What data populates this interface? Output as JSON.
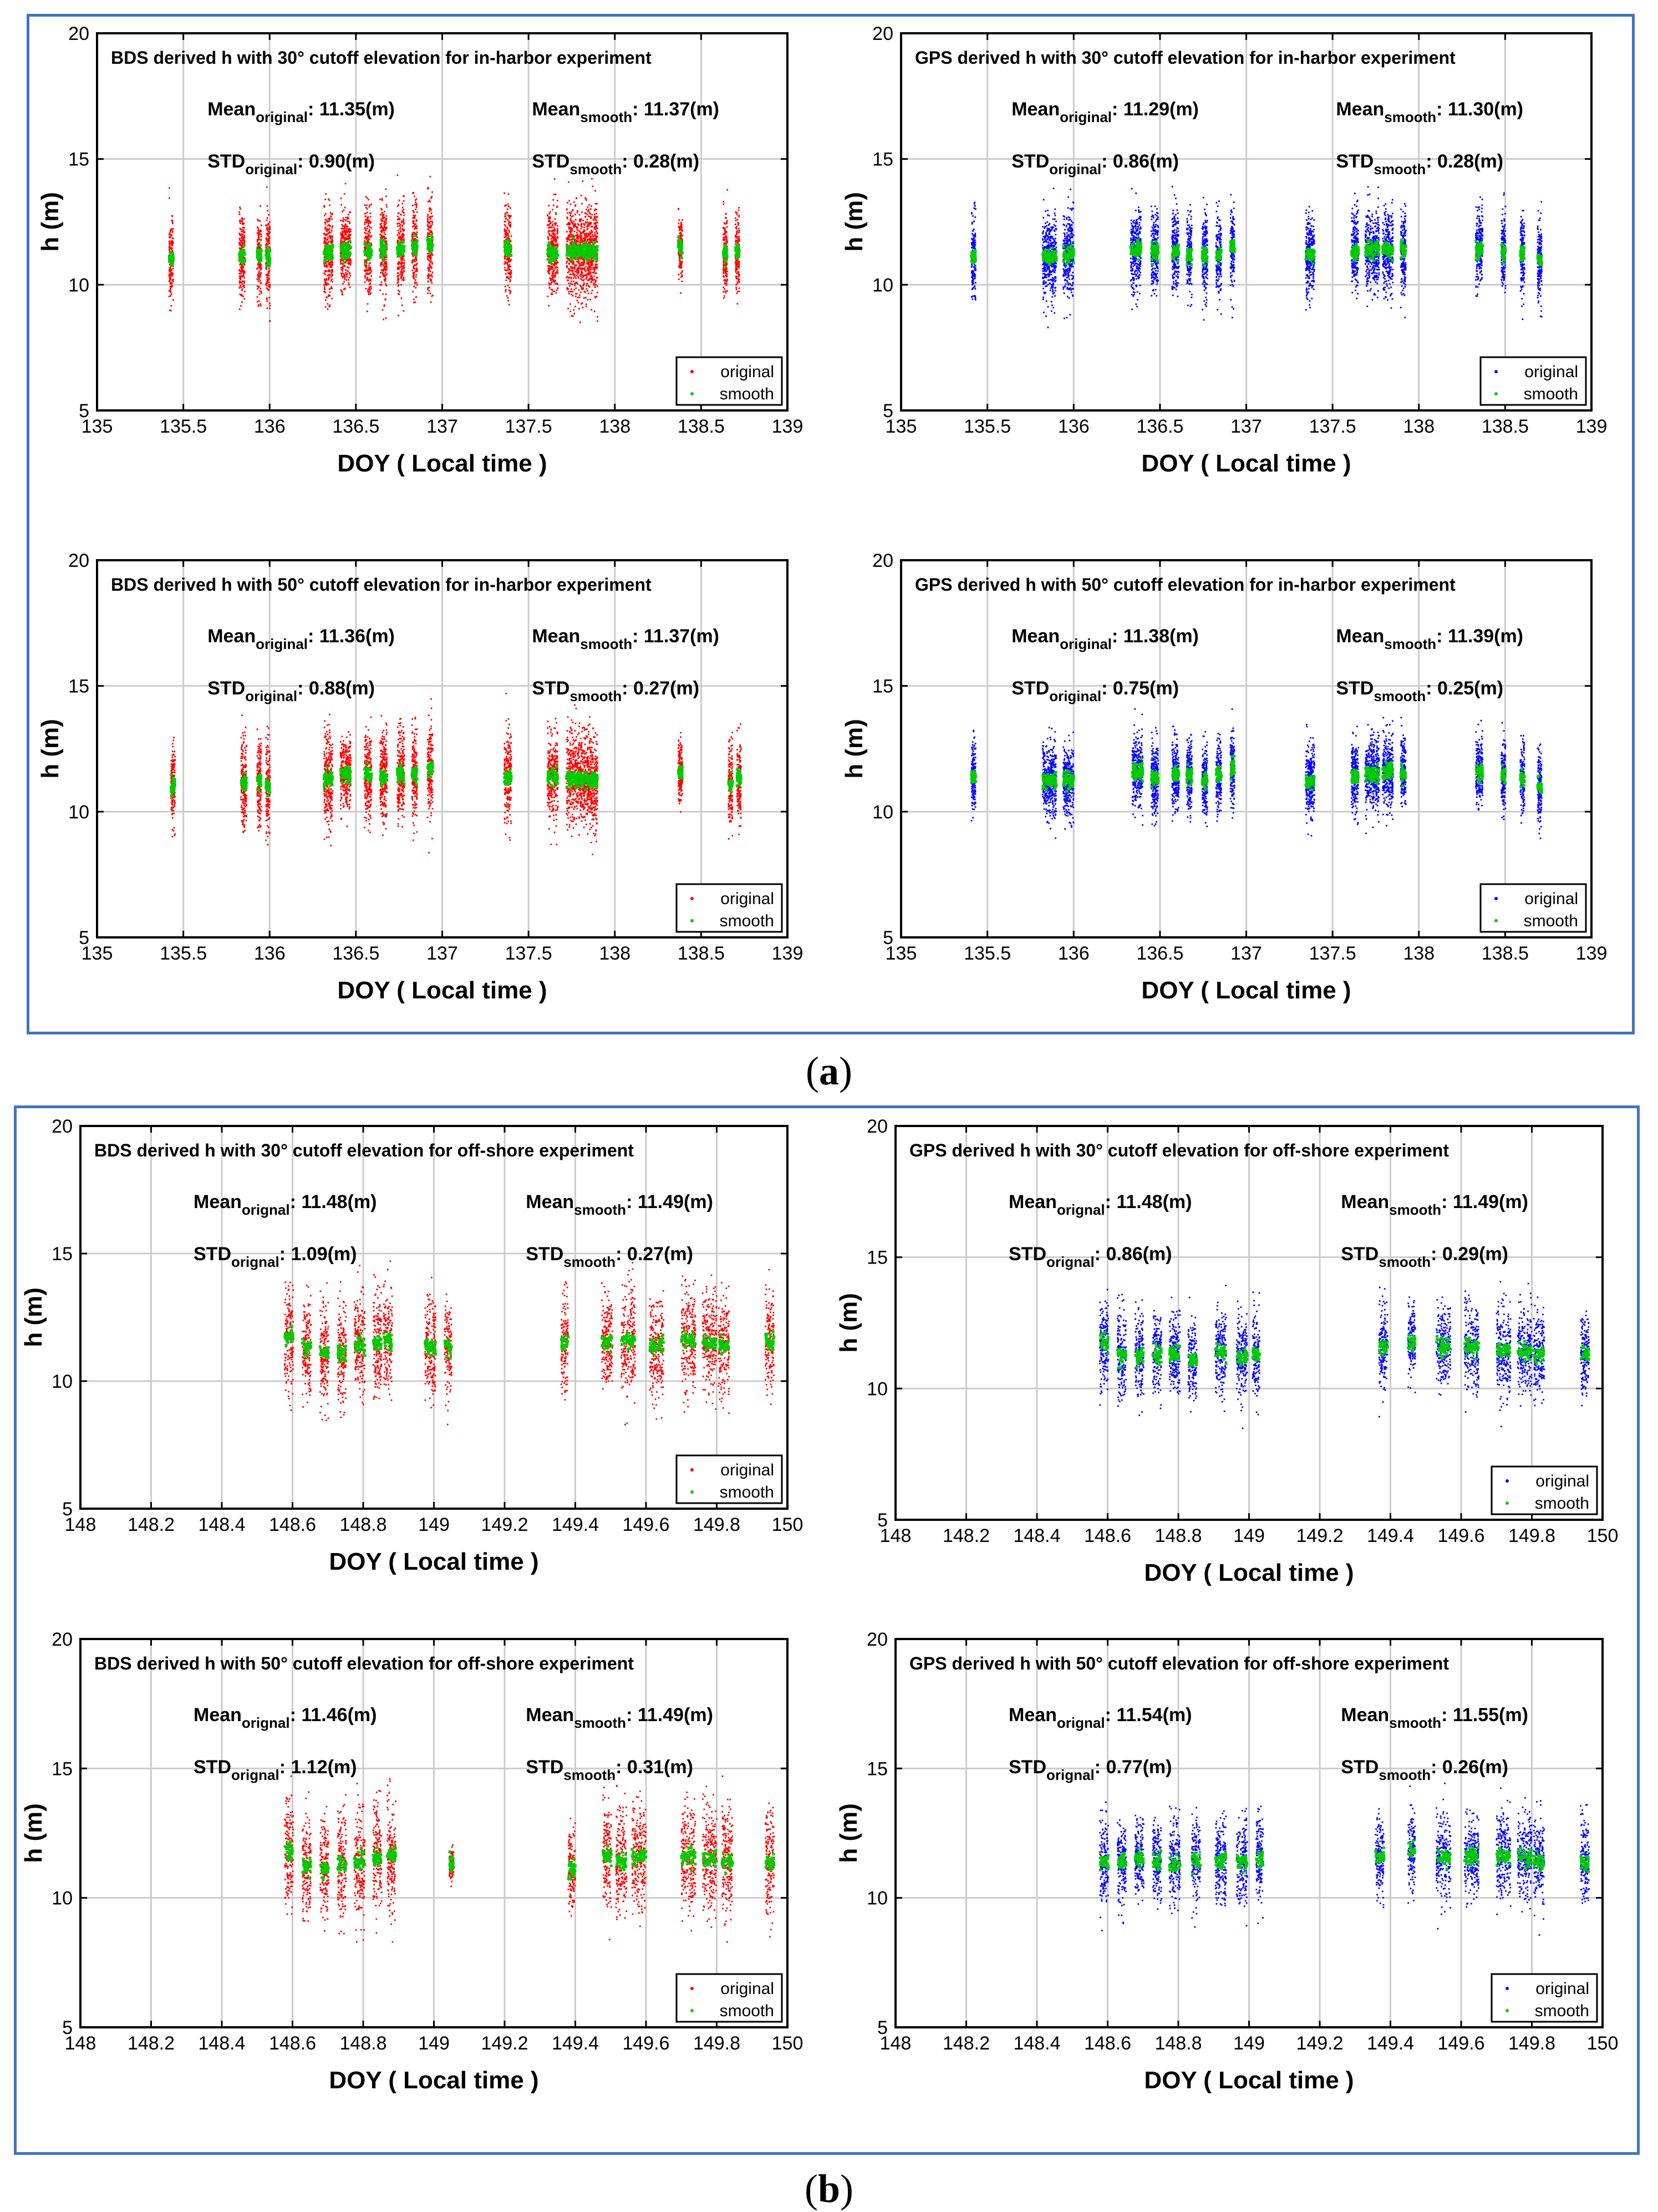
{
  "captions": {
    "a": "a",
    "b": "b"
  },
  "colors": {
    "original_bds": "#ff0000",
    "original_gps": "#0000ff",
    "smooth": "#00cc00",
    "frame": "#4472c4",
    "grid": "#cccccc"
  },
  "chart_data": [
    {
      "id": "bds30_harbor",
      "type": "scatter",
      "title": "BDS derived h with 30° cutoff elevation for in-harbor experiment",
      "xlabel": "DOY ( Local time )",
      "ylabel": "h (m)",
      "xlim": [
        135,
        139
      ],
      "ylim": [
        5,
        20
      ],
      "xticks": [
        "135",
        "135.5",
        "136",
        "136.5",
        "137",
        "137.5",
        "138",
        "138.5",
        "139"
      ],
      "yticks": [
        "5",
        "10",
        "15",
        "20"
      ],
      "mean_original": "11.35(m)",
      "mean_smooth": "11.37(m)",
      "std_original": "0.90(m)",
      "std_smooth": "0.28(m)",
      "original_sub": "original",
      "legend": [
        "original",
        "smooth"
      ],
      "orig_color": "#ff0000",
      "seed": 11,
      "clusters": [
        [
          135.43,
          0.012,
          11.0,
          0.8
        ],
        [
          135.84,
          0.016,
          11.1,
          0.9
        ],
        [
          135.94,
          0.012,
          11.2,
          0.9
        ],
        [
          135.99,
          0.012,
          11.1,
          0.9
        ],
        [
          136.34,
          0.025,
          11.3,
          0.9
        ],
        [
          136.44,
          0.03,
          11.4,
          0.7
        ],
        [
          136.57,
          0.02,
          11.3,
          0.9
        ],
        [
          136.66,
          0.02,
          11.4,
          0.9
        ],
        [
          136.76,
          0.02,
          11.4,
          0.9
        ],
        [
          136.84,
          0.015,
          11.5,
          0.9
        ],
        [
          136.93,
          0.015,
          11.6,
          0.9
        ],
        [
          137.38,
          0.02,
          11.4,
          0.9
        ],
        [
          137.64,
          0.03,
          11.3,
          0.8
        ],
        [
          137.78,
          0.06,
          11.3,
          0.9
        ],
        [
          137.87,
          0.03,
          11.3,
          0.9
        ],
        [
          138.38,
          0.012,
          11.5,
          0.6
        ],
        [
          138.64,
          0.012,
          11.2,
          0.8
        ],
        [
          138.71,
          0.012,
          11.3,
          0.8
        ]
      ]
    },
    {
      "id": "gps30_harbor",
      "type": "scatter",
      "title": "GPS derived h with 30° cutoff elevation for in-harbor experiment",
      "xlabel": "DOY ( Local time )",
      "ylabel": "h (m)",
      "xlim": [
        135,
        139
      ],
      "ylim": [
        5,
        20
      ],
      "xticks": [
        "135",
        "135.5",
        "136",
        "136.5",
        "137",
        "137.5",
        "138",
        "138.5",
        "139"
      ],
      "yticks": [
        "5",
        "10",
        "15",
        "20"
      ],
      "mean_original": "11.29(m)",
      "mean_smooth": "11.30(m)",
      "std_original": "0.86(m)",
      "std_smooth": "0.28(m)",
      "original_sub": "original",
      "legend": [
        "original",
        "smooth"
      ],
      "orig_color": "#0000ff",
      "seed": 23,
      "clusters": [
        [
          135.42,
          0.012,
          11.2,
          0.8
        ],
        [
          135.86,
          0.04,
          11.1,
          0.8
        ],
        [
          135.97,
          0.03,
          11.2,
          0.8
        ],
        [
          136.36,
          0.03,
          11.4,
          0.8
        ],
        [
          136.47,
          0.02,
          11.3,
          0.8
        ],
        [
          136.59,
          0.02,
          11.3,
          0.8
        ],
        [
          136.67,
          0.015,
          11.2,
          0.8
        ],
        [
          136.76,
          0.015,
          11.2,
          0.8
        ],
        [
          136.84,
          0.015,
          11.2,
          0.8
        ],
        [
          136.92,
          0.012,
          11.5,
          0.8
        ],
        [
          137.37,
          0.025,
          11.2,
          0.8
        ],
        [
          137.63,
          0.02,
          11.3,
          0.8
        ],
        [
          137.73,
          0.04,
          11.4,
          0.8
        ],
        [
          137.82,
          0.03,
          11.4,
          0.8
        ],
        [
          137.91,
          0.015,
          11.4,
          0.8
        ],
        [
          138.35,
          0.02,
          11.4,
          0.8
        ],
        [
          138.49,
          0.012,
          11.3,
          0.8
        ],
        [
          138.6,
          0.012,
          11.2,
          0.8
        ],
        [
          138.7,
          0.012,
          11.0,
          0.8
        ]
      ]
    },
    {
      "id": "bds50_harbor",
      "type": "scatter",
      "title": "BDS derived h with 50° cutoff elevation for in-harbor experiment",
      "xlabel": "DOY ( Local time )",
      "ylabel": "h (m)",
      "xlim": [
        135,
        139
      ],
      "ylim": [
        5,
        20
      ],
      "xticks": [
        "135",
        "135.5",
        "136",
        "136.5",
        "137",
        "137.5",
        "138",
        "138.5",
        "139"
      ],
      "yticks": [
        "5",
        "10",
        "15",
        "20"
      ],
      "mean_original": "11.36(m)",
      "mean_smooth": "11.37(m)",
      "std_original": "0.88(m)",
      "std_smooth": "0.27(m)",
      "original_sub": "original",
      "legend": [
        "original",
        "smooth"
      ],
      "orig_color": "#ff0000",
      "seed": 37,
      "clusters": [
        [
          135.44,
          0.012,
          11.0,
          0.8
        ],
        [
          135.85,
          0.016,
          11.1,
          0.9
        ],
        [
          135.94,
          0.012,
          11.2,
          0.9
        ],
        [
          135.99,
          0.012,
          11.0,
          0.9
        ],
        [
          136.34,
          0.025,
          11.3,
          0.9
        ],
        [
          136.44,
          0.03,
          11.5,
          0.7
        ],
        [
          136.57,
          0.02,
          11.4,
          0.9
        ],
        [
          136.66,
          0.02,
          11.4,
          0.9
        ],
        [
          136.76,
          0.02,
          11.5,
          0.9
        ],
        [
          136.84,
          0.015,
          11.5,
          0.9
        ],
        [
          136.93,
          0.015,
          11.7,
          0.9
        ],
        [
          137.38,
          0.02,
          11.3,
          0.9
        ],
        [
          137.64,
          0.03,
          11.4,
          0.8
        ],
        [
          137.78,
          0.06,
          11.3,
          0.9
        ],
        [
          137.87,
          0.03,
          11.3,
          0.9
        ],
        [
          138.38,
          0.012,
          11.6,
          0.6
        ],
        [
          138.67,
          0.012,
          11.1,
          0.8
        ],
        [
          138.72,
          0.012,
          11.3,
          0.8
        ]
      ]
    },
    {
      "id": "gps50_harbor",
      "type": "scatter",
      "title": "GPS derived h with 50° cutoff elevation for in-harbor experiment",
      "xlabel": "DOY ( Local time )",
      "ylabel": "h (m)",
      "xlim": [
        135,
        139
      ],
      "ylim": [
        5,
        20
      ],
      "xticks": [
        "135",
        "135.5",
        "136",
        "136.5",
        "137",
        "137.5",
        "138",
        "138.5",
        "139"
      ],
      "yticks": [
        "5",
        "10",
        "15",
        "20"
      ],
      "mean_original": "11.38(m)",
      "mean_smooth": "11.39(m)",
      "std_original": "0.75(m)",
      "std_smooth": "0.25(m)",
      "original_sub": "original",
      "legend": [
        "original",
        "smooth"
      ],
      "orig_color": "#0000ff",
      "seed": 41,
      "clusters": [
        [
          135.42,
          0.012,
          11.4,
          0.7
        ],
        [
          135.86,
          0.04,
          11.2,
          0.7
        ],
        [
          135.97,
          0.03,
          11.2,
          0.7
        ],
        [
          136.37,
          0.03,
          11.6,
          0.7
        ],
        [
          136.47,
          0.02,
          11.3,
          0.7
        ],
        [
          136.59,
          0.02,
          11.5,
          0.7
        ],
        [
          136.67,
          0.015,
          11.4,
          0.7
        ],
        [
          136.76,
          0.015,
          11.2,
          0.7
        ],
        [
          136.84,
          0.015,
          11.5,
          0.7
        ],
        [
          136.92,
          0.012,
          11.7,
          0.7
        ],
        [
          137.37,
          0.025,
          11.2,
          0.7
        ],
        [
          137.63,
          0.02,
          11.4,
          0.7
        ],
        [
          137.73,
          0.04,
          11.5,
          0.7
        ],
        [
          137.82,
          0.03,
          11.6,
          0.7
        ],
        [
          137.91,
          0.015,
          11.5,
          0.7
        ],
        [
          138.35,
          0.02,
          11.6,
          0.7
        ],
        [
          138.49,
          0.012,
          11.4,
          0.7
        ],
        [
          138.6,
          0.012,
          11.3,
          0.7
        ],
        [
          138.7,
          0.012,
          11.0,
          0.7
        ]
      ]
    },
    {
      "id": "bds30_offshore",
      "type": "scatter",
      "title": "BDS derived h with 30° cutoff elevation for off-shore experiment",
      "xlabel": "DOY ( Local time )",
      "ylabel": "h (m)",
      "xlim": [
        148,
        150
      ],
      "ylim": [
        5,
        20
      ],
      "xticks": [
        "148",
        "148.2",
        "148.4",
        "148.6",
        "148.8",
        "149",
        "149.2",
        "149.4",
        "149.6",
        "149.8",
        "150"
      ],
      "yticks": [
        "5",
        "10",
        "15",
        "20"
      ],
      "mean_original": "11.48(m)",
      "mean_smooth": "11.49(m)",
      "std_original": "1.09(m)",
      "std_smooth": "0.27(m)",
      "original_sub": "orignal",
      "legend": [
        "original",
        "smooth"
      ],
      "orig_color": "#ff0000",
      "seed": 53,
      "clusters": [
        [
          148.59,
          0.012,
          11.7,
          1.0
        ],
        [
          148.64,
          0.012,
          11.3,
          1.0
        ],
        [
          148.69,
          0.012,
          11.1,
          1.0
        ],
        [
          148.74,
          0.012,
          11.1,
          1.0
        ],
        [
          148.79,
          0.015,
          11.4,
          1.0
        ],
        [
          148.84,
          0.012,
          11.5,
          1.0
        ],
        [
          148.87,
          0.012,
          11.6,
          1.0
        ],
        [
          148.99,
          0.015,
          11.3,
          1.0
        ],
        [
          149.04,
          0.01,
          11.4,
          1.0
        ],
        [
          149.37,
          0.01,
          11.5,
          0.9
        ],
        [
          149.49,
          0.015,
          11.5,
          0.9
        ],
        [
          149.55,
          0.02,
          11.6,
          1.0
        ],
        [
          149.63,
          0.02,
          11.4,
          1.0
        ],
        [
          149.72,
          0.02,
          11.6,
          1.0
        ],
        [
          149.78,
          0.02,
          11.5,
          1.0
        ],
        [
          149.82,
          0.015,
          11.4,
          1.0
        ],
        [
          149.95,
          0.012,
          11.6,
          1.0
        ]
      ]
    },
    {
      "id": "gps30_offshore",
      "type": "scatter",
      "title": "GPS derived h with 30° cutoff elevation for off-shore experiment",
      "xlabel": "DOY ( Local time )",
      "ylabel": "h (m)",
      "xlim": [
        148,
        150
      ],
      "ylim": [
        5,
        20
      ],
      "xticks": [
        "148",
        "148.2",
        "148.4",
        "148.6",
        "148.8",
        "149",
        "149.2",
        "149.4",
        "149.6",
        "149.8",
        "150"
      ],
      "yticks": [
        "5",
        "10",
        "15",
        "20"
      ],
      "mean_original": "11.48(m)",
      "mean_smooth": "11.49(m)",
      "std_original": "0.86(m)",
      "std_smooth": "0.29(m)",
      "original_sub": "orignal",
      "legend": [
        "original",
        "smooth"
      ],
      "orig_color": "#0000ff",
      "seed": 67,
      "clusters": [
        [
          148.59,
          0.012,
          11.7,
          0.8
        ],
        [
          148.64,
          0.012,
          11.3,
          0.8
        ],
        [
          148.69,
          0.012,
          11.2,
          0.8
        ],
        [
          148.74,
          0.012,
          11.3,
          0.8
        ],
        [
          148.79,
          0.015,
          11.3,
          0.8
        ],
        [
          148.84,
          0.012,
          11.1,
          0.8
        ],
        [
          148.92,
          0.015,
          11.4,
          0.8
        ],
        [
          148.98,
          0.015,
          11.2,
          0.8
        ],
        [
          149.02,
          0.01,
          11.3,
          0.8
        ],
        [
          149.38,
          0.012,
          11.6,
          0.8
        ],
        [
          149.46,
          0.01,
          11.8,
          0.8
        ],
        [
          149.55,
          0.02,
          11.6,
          0.8
        ],
        [
          149.63,
          0.02,
          11.6,
          0.8
        ],
        [
          149.72,
          0.02,
          11.5,
          0.8
        ],
        [
          149.78,
          0.02,
          11.4,
          0.8
        ],
        [
          149.82,
          0.015,
          11.3,
          0.8
        ],
        [
          149.95,
          0.012,
          11.3,
          0.8
        ]
      ]
    },
    {
      "id": "bds50_offshore",
      "type": "scatter",
      "title": "BDS derived h with 50° cutoff elevation for off-shore experiment",
      "xlabel": "DOY ( Local time )",
      "ylabel": "h (m)",
      "xlim": [
        148,
        150
      ],
      "ylim": [
        5,
        20
      ],
      "xticks": [
        "148",
        "148.2",
        "148.4",
        "148.6",
        "148.8",
        "149",
        "149.2",
        "149.4",
        "149.6",
        "149.8",
        "150"
      ],
      "yticks": [
        "5",
        "10",
        "15",
        "20"
      ],
      "mean_original": "11.46(m)",
      "mean_smooth": "11.49(m)",
      "std_original": "1.12(m)",
      "std_smooth": "0.31(m)",
      "original_sub": "orignal",
      "legend": [
        "original",
        "smooth"
      ],
      "orig_color": "#ff0000",
      "seed": 79,
      "clusters": [
        [
          148.59,
          0.012,
          11.8,
          1.0
        ],
        [
          148.64,
          0.012,
          11.2,
          1.0
        ],
        [
          148.69,
          0.012,
          11.1,
          1.0
        ],
        [
          148.74,
          0.012,
          11.3,
          1.0
        ],
        [
          148.79,
          0.015,
          11.4,
          1.0
        ],
        [
          148.84,
          0.012,
          11.5,
          1.0
        ],
        [
          148.88,
          0.012,
          11.6,
          1.0
        ],
        [
          149.05,
          0.006,
          11.3,
          0.3
        ],
        [
          149.39,
          0.01,
          11.1,
          0.8
        ],
        [
          149.49,
          0.012,
          11.6,
          1.0
        ],
        [
          149.53,
          0.015,
          11.4,
          1.0
        ],
        [
          149.58,
          0.02,
          11.6,
          1.0
        ],
        [
          149.72,
          0.02,
          11.6,
          1.0
        ],
        [
          149.78,
          0.02,
          11.5,
          1.0
        ],
        [
          149.83,
          0.015,
          11.4,
          1.0
        ],
        [
          149.95,
          0.012,
          11.3,
          1.0
        ]
      ]
    },
    {
      "id": "gps50_offshore",
      "type": "scatter",
      "title": "GPS derived h with 50° cutoff elevation for off-shore experiment",
      "xlabel": "DOY ( Local time )",
      "ylabel": "h (m)",
      "xlim": [
        148,
        150
      ],
      "ylim": [
        5,
        20
      ],
      "xticks": [
        "148",
        "148.2",
        "148.4",
        "148.6",
        "148.8",
        "149",
        "149.2",
        "149.4",
        "149.6",
        "149.8",
        "150"
      ],
      "yticks": [
        "5",
        "10",
        "15",
        "20"
      ],
      "mean_original": "11.54(m)",
      "mean_smooth": "11.55(m)",
      "std_original": "0.77(m)",
      "std_smooth": "0.26(m)",
      "original_sub": "orignal",
      "legend": [
        "original",
        "smooth"
      ],
      "orig_color": "#0000ff",
      "seed": 83,
      "clusters": [
        [
          148.59,
          0.012,
          11.4,
          0.8
        ],
        [
          148.64,
          0.012,
          11.4,
          0.8
        ],
        [
          148.69,
          0.012,
          11.5,
          0.8
        ],
        [
          148.74,
          0.012,
          11.4,
          0.8
        ],
        [
          148.79,
          0.015,
          11.3,
          0.8
        ],
        [
          148.85,
          0.012,
          11.4,
          0.8
        ],
        [
          148.92,
          0.015,
          11.4,
          0.8
        ],
        [
          148.98,
          0.015,
          11.4,
          0.8
        ],
        [
          149.03,
          0.01,
          11.5,
          0.8
        ],
        [
          149.37,
          0.012,
          11.6,
          0.8
        ],
        [
          149.46,
          0.01,
          11.8,
          0.8
        ],
        [
          149.55,
          0.02,
          11.6,
          0.8
        ],
        [
          149.63,
          0.02,
          11.6,
          0.8
        ],
        [
          149.72,
          0.02,
          11.6,
          0.8
        ],
        [
          149.78,
          0.02,
          11.6,
          0.8
        ],
        [
          149.82,
          0.015,
          11.4,
          0.8
        ],
        [
          149.95,
          0.012,
          11.4,
          0.8
        ]
      ]
    }
  ]
}
